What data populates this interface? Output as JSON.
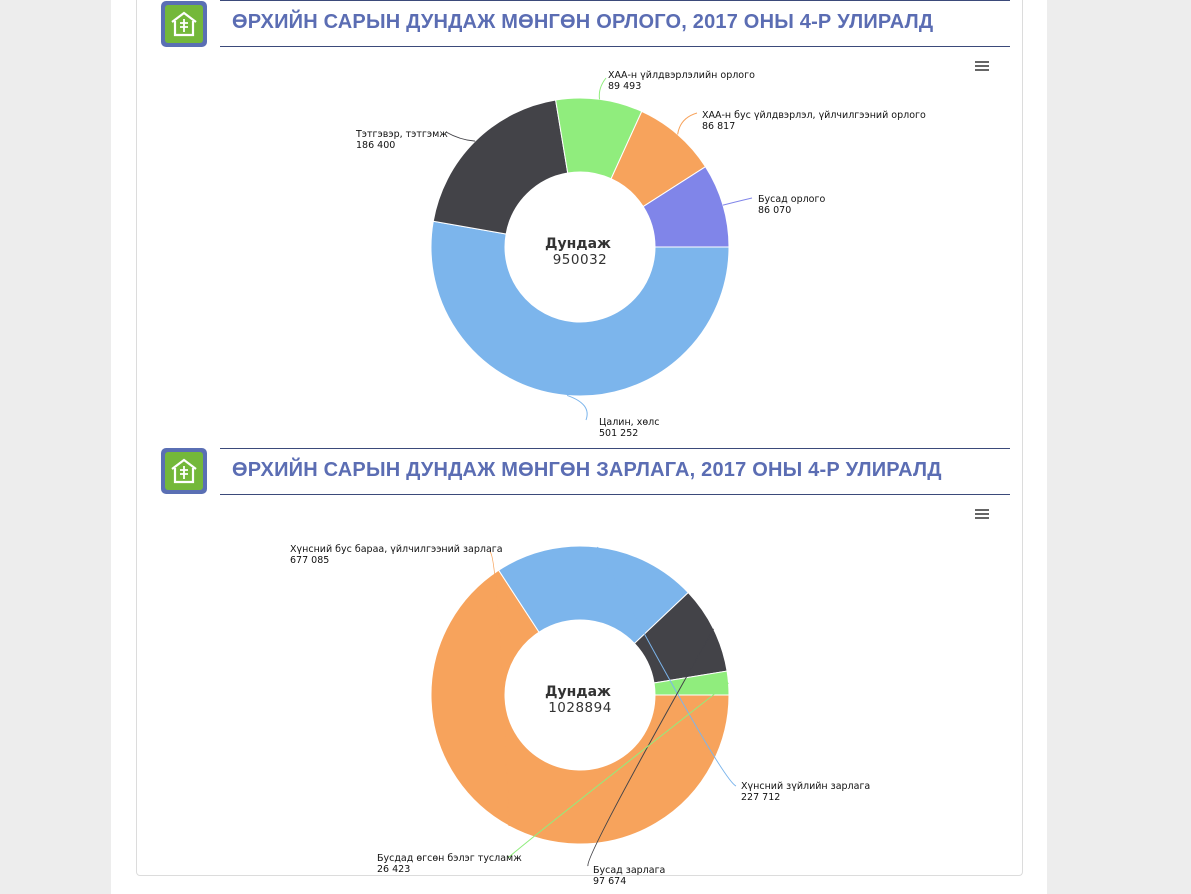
{
  "sections": [
    {
      "title": "ӨРХИЙН САРЫН ДУНДАЖ МӨНГӨН ОРЛОГО, 2017 ОНЫ 4-Р УЛИРАЛД",
      "center_label": "Дундаж",
      "center_value": "950032"
    },
    {
      "title": "ӨРХИЙН САРЫН ДУНДАЖ МӨНГӨН ЗАРЛАГА, 2017 ОНЫ 4-Р УЛИРАЛД",
      "center_label": "Дундаж",
      "center_value": "1028894"
    }
  ],
  "chart_data": [
    {
      "type": "pie",
      "slices": [
        {
          "label": "Цалин, хөлс",
          "value": 501252,
          "display": "501 252",
          "color": "#7cb5ec"
        },
        {
          "label": "Тэтгэвэр, тэтгэмж",
          "value": 186400,
          "display": "186 400",
          "color": "#434348"
        },
        {
          "label": "ХАА-н үйлдвэрлэлийн орлого",
          "value": 89493,
          "display": "89 493",
          "color": "#90ed7d"
        },
        {
          "label": "ХАА-н бус үйлдвэрлэл, үйлчилгээний орлого",
          "value": 86817,
          "display": "86 817",
          "color": "#f7a35c"
        },
        {
          "label": "Бусад орлого",
          "value": 86070,
          "display": "86 070",
          "color": "#8085e9"
        }
      ]
    },
    {
      "type": "pie",
      "slices": [
        {
          "label": "Хүнсний бус бараа, үйлчилгээний зарлага",
          "value": 677085,
          "display": "677 085",
          "color": "#f7a35c"
        },
        {
          "label": "Хүнсний зүйлийн зарлага",
          "value": 227712,
          "display": "227 712",
          "color": "#7cb5ec"
        },
        {
          "label": "Бусад зарлага",
          "value": 97674,
          "display": "97 674",
          "color": "#434348"
        },
        {
          "label": "Бусдад өгсөн бэлэг тусламж",
          "value": 26423,
          "display": "26 423",
          "color": "#90ed7d"
        }
      ]
    }
  ],
  "icons": {
    "logo": "ger-logo-icon",
    "menu": "hamburger-menu-icon"
  },
  "colors": {
    "title": "#5b6db3",
    "logo_frame": "#5a6fb4",
    "logo_fill": "#74b83a"
  }
}
